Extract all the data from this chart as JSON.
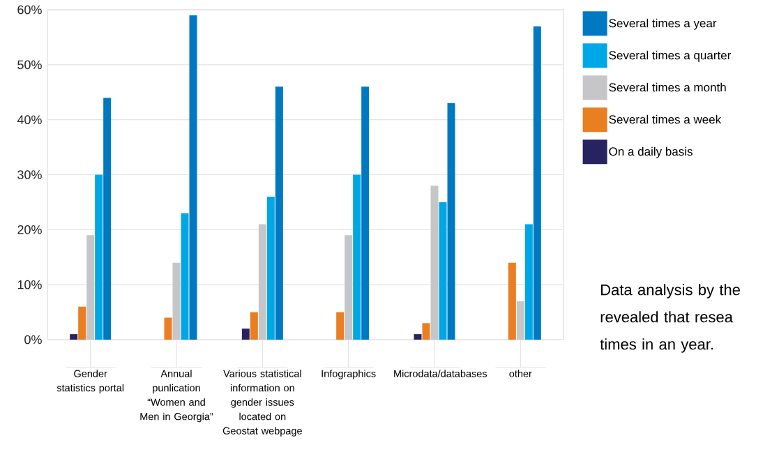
{
  "chart_data": {
    "type": "bar",
    "categories": [
      "Gender statistics portal",
      "Annual punlication “Women and Men in Georgia”",
      "Various statistical information on gender issues located on Geostat webpage",
      "Infographics",
      "Microdata/databases",
      "other"
    ],
    "series": [
      {
        "name": "On a daily basis",
        "color": "#27235f",
        "values": [
          1,
          null,
          2,
          null,
          1,
          null
        ]
      },
      {
        "name": "Several times a week",
        "color": "#e97e23",
        "values": [
          6,
          4,
          5,
          5,
          3,
          14
        ]
      },
      {
        "name": "Several times a month",
        "color": "#c6c6c8",
        "values": [
          19,
          14,
          21,
          19,
          28,
          7
        ]
      },
      {
        "name": "Several times a quarter",
        "color": "#00a7e6",
        "values": [
          30,
          23,
          26,
          30,
          25,
          21
        ]
      },
      {
        "name": "Several times a year",
        "color": "#0079c2",
        "values": [
          44,
          59,
          46,
          46,
          43,
          57
        ]
      }
    ],
    "ylim": [
      0,
      60
    ],
    "yticks": [
      {
        "value": 0,
        "label": "0%"
      },
      {
        "value": 10,
        "label": "10%"
      },
      {
        "value": 20,
        "label": "20%"
      },
      {
        "value": 30,
        "label": "30%"
      },
      {
        "value": 40,
        "label": "40%"
      },
      {
        "value": 50,
        "label": "50%"
      },
      {
        "value": 60,
        "label": "60%"
      }
    ],
    "grid": "y",
    "legend": "right",
    "annotations": [
      "Data analysis by the revealed that resea times in an year."
    ]
  }
}
